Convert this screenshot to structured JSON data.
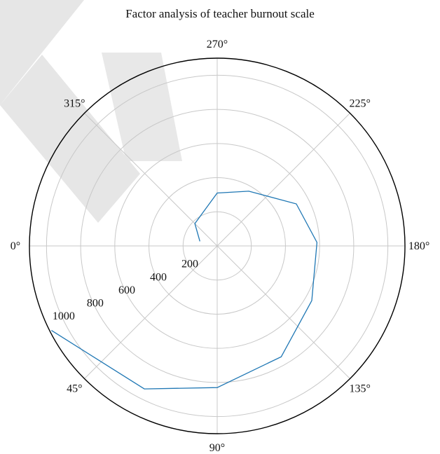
{
  "chart_data": {
    "type": "line",
    "subtype": "polar",
    "title": "Factor analysis of teacher burnout scale",
    "angle_ticks": [
      {
        "deg": 0,
        "label": "0°"
      },
      {
        "deg": 45,
        "label": "45°"
      },
      {
        "deg": 90,
        "label": "90°"
      },
      {
        "deg": 135,
        "label": "135°"
      },
      {
        "deg": 180,
        "label": "180°"
      },
      {
        "deg": 225,
        "label": "225°"
      },
      {
        "deg": 270,
        "label": "270°"
      },
      {
        "deg": 315,
        "label": "315°"
      }
    ],
    "radial_ticks": [
      200,
      400,
      600,
      800,
      1000
    ],
    "rlim": [
      0,
      1100
    ],
    "angle_zero": "left",
    "angle_direction": "counterclockwise",
    "grid": true,
    "series": [
      {
        "color": "#1f77b4",
        "points": [
          {
            "theta": 345,
            "r": 105
          },
          {
            "theta": 315,
            "r": 185
          },
          {
            "theta": 270,
            "r": 310
          },
          {
            "theta": 240,
            "r": 370
          },
          {
            "theta": 208,
            "r": 525
          },
          {
            "theta": 182,
            "r": 585
          },
          {
            "theta": 150,
            "r": 640
          },
          {
            "theta": 120,
            "r": 750
          },
          {
            "theta": 90,
            "r": 830
          },
          {
            "theta": 63,
            "r": 940
          },
          {
            "theta": 27,
            "r": 1090
          }
        ]
      }
    ]
  },
  "colors": {
    "line": "#1f77b4",
    "grid": "#c8c8c8",
    "frame": "#000000",
    "watermark": "#e4e4e4"
  }
}
